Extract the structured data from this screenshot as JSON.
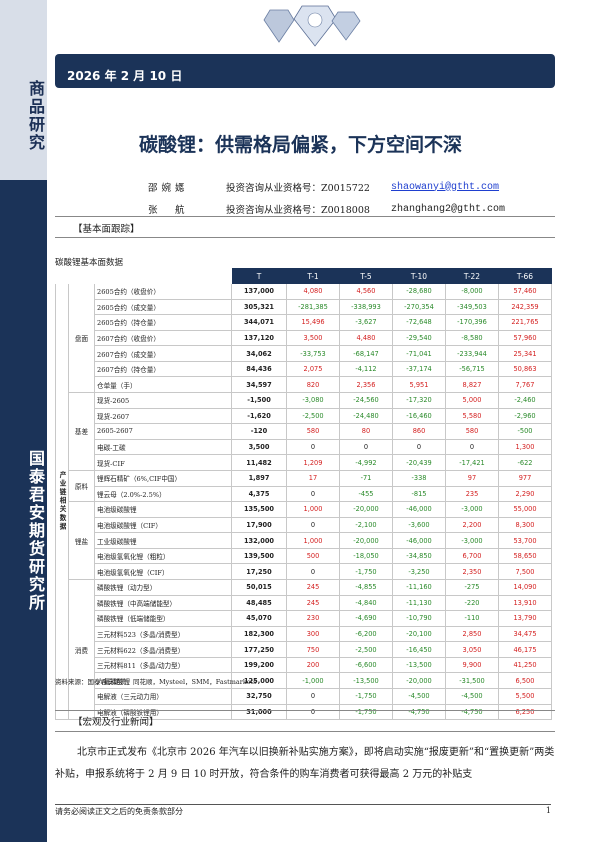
{
  "sidebar": {
    "top_text": "商品研究",
    "bottom_text": "国泰君安期货研究所"
  },
  "header": {
    "date": "2026 年 2 月 10 日"
  },
  "title": "碳酸锂：供需格局偏紧，下方空间不深",
  "authors": [
    {
      "name": "邵婉嫕",
      "license": "投资咨询从业资格号：Z0015722",
      "email": "shaowanyi@gtht.com"
    },
    {
      "name": "张　航",
      "license": "投资咨询从业资格号：Z0018008",
      "email": "zhanghang2@gtht.com"
    }
  ],
  "section1": "【基本面跟踪】",
  "table_title": "碳酸锂基本面数据",
  "table": {
    "headers": [
      "T",
      "T-1",
      "T-5",
      "T-10",
      "T-22",
      "T-66"
    ],
    "groups": {
      "industry": "产业链相关数据",
      "futures": "盘面",
      "basis": "基差",
      "raw": "原料",
      "lithium": "锂盐",
      "consumption": "消费"
    },
    "rows": [
      {
        "name": "2605合约（收盘价）",
        "v": [
          "137,000",
          "4,080",
          "4,560",
          "-28,680",
          "-8,000",
          "57,460"
        ]
      },
      {
        "name": "2605合约（成交量）",
        "v": [
          "305,321",
          "-281,385",
          "-338,993",
          "-270,354",
          "-349,503",
          "242,359"
        ]
      },
      {
        "name": "2605合约（持仓量）",
        "v": [
          "344,071",
          "15,496",
          "-3,627",
          "-72,648",
          "-170,396",
          "221,765"
        ]
      },
      {
        "name": "2607合约（收盘价）",
        "v": [
          "137,120",
          "3,500",
          "4,480",
          "-29,540",
          "-8,580",
          "57,960"
        ]
      },
      {
        "name": "2607合约（成交量）",
        "v": [
          "34,062",
          "-33,753",
          "-68,147",
          "-71,041",
          "-233,944",
          "25,341"
        ]
      },
      {
        "name": "2607合约（持仓量）",
        "v": [
          "84,436",
          "2,075",
          "-4,112",
          "-37,174",
          "-56,715",
          "50,863"
        ]
      },
      {
        "name": "仓单量（手）",
        "v": [
          "34,597",
          "820",
          "2,356",
          "5,951",
          "8,827",
          "7,767"
        ]
      },
      {
        "name": "现货-2605",
        "v": [
          "-1,500",
          "-3,080",
          "-24,560",
          "-17,320",
          "5,000",
          "-2,460"
        ]
      },
      {
        "name": "现货-2607",
        "v": [
          "-1,620",
          "-2,500",
          "-24,480",
          "-16,460",
          "5,580",
          "-2,960"
        ]
      },
      {
        "name": "2605-2607",
        "v": [
          "-120",
          "580",
          "80",
          "860",
          "580",
          "-500"
        ]
      },
      {
        "name": "电碳-工碳",
        "v": [
          "3,500",
          "0",
          "0",
          "0",
          "0",
          "1,300"
        ]
      },
      {
        "name": "现货-CIF",
        "v": [
          "11,482",
          "1,209",
          "-4,992",
          "-20,439",
          "-17,421",
          "-622"
        ]
      },
      {
        "name": "锂辉石精矿（6%,CIF中国）",
        "v": [
          "1,897",
          "17",
          "-71",
          "-338",
          "97",
          "977"
        ]
      },
      {
        "name": "锂云母（2.0%-2.5%）",
        "v": [
          "4,375",
          "0",
          "-455",
          "-815",
          "235",
          "2,290"
        ]
      },
      {
        "name": "电池级碳酸锂",
        "v": [
          "135,500",
          "1,000",
          "-20,000",
          "-46,000",
          "-3,000",
          "55,000"
        ]
      },
      {
        "name": "电池级碳酸锂（CIF）",
        "v": [
          "17,900",
          "0",
          "-2,100",
          "-3,600",
          "2,200",
          "8,300"
        ]
      },
      {
        "name": "工业级碳酸锂",
        "v": [
          "132,000",
          "1,000",
          "-20,000",
          "-46,000",
          "-3,000",
          "53,700"
        ]
      },
      {
        "name": "电池级氢氧化锂（粗粒）",
        "v": [
          "139,500",
          "500",
          "-18,050",
          "-34,850",
          "6,700",
          "58,650"
        ]
      },
      {
        "name": "电池级氢氧化锂（CIF）",
        "v": [
          "17,250",
          "0",
          "-1,750",
          "-3,250",
          "2,350",
          "7,500"
        ]
      },
      {
        "name": "磷酸铁锂（动力型）",
        "v": [
          "50,015",
          "245",
          "-4,855",
          "-11,160",
          "-275",
          "14,090"
        ]
      },
      {
        "name": "磷酸铁锂（中高端储能型）",
        "v": [
          "48,485",
          "245",
          "-4,840",
          "-11,130",
          "-220",
          "13,910"
        ]
      },
      {
        "name": "磷酸铁锂（低端储能型）",
        "v": [
          "45,070",
          "230",
          "-4,690",
          "-10,790",
          "-110",
          "13,790"
        ]
      },
      {
        "name": "三元材料523（多晶/消费型）",
        "v": [
          "182,300",
          "300",
          "-6,200",
          "-20,100",
          "2,850",
          "34,475"
        ]
      },
      {
        "name": "三元材料622（多晶/消费型）",
        "v": [
          "177,250",
          "750",
          "-2,500",
          "-16,450",
          "3,050",
          "46,175"
        ]
      },
      {
        "name": "三元材料811（多晶/动力型）",
        "v": [
          "199,200",
          "200",
          "-6,600",
          "-13,500",
          "9,900",
          "41,250"
        ]
      },
      {
        "name": "六氟磷酸锂",
        "v": [
          "125,000",
          "-1,000",
          "-13,500",
          "-20,000",
          "-31,500",
          "6,500"
        ]
      },
      {
        "name": "电解液（三元动力用）",
        "v": [
          "32,750",
          "0",
          "-1,750",
          "-4,500",
          "-4,500",
          "5,500"
        ]
      },
      {
        "name": "电解液（磷酸铁锂用）",
        "v": [
          "31,000",
          "0",
          "-1,750",
          "-4,750",
          "-4,750",
          "6,250"
        ]
      }
    ]
  },
  "source": "资料来源：国泰君安期货，同花顺，Mysteel，SMM，Fastmarkets",
  "section2": "【宏观及行业新闻】",
  "news": "北京市正式发布《北京市 2026 年汽车以旧换新补贴实施方案》，即将启动实施“报废更新”和“置换更新”两类补贴，申报系统将于 2 月 9 日 10 时开放，符合条件的购车消费者可获得最高 2 万元的补贴支",
  "footer": {
    "disclaimer": "请务必阅读正文之后的免责条款部分",
    "page": "1"
  },
  "colors": {
    "navy": "#1b3358",
    "positive": "#d42020",
    "negative": "#2a8a2a"
  }
}
